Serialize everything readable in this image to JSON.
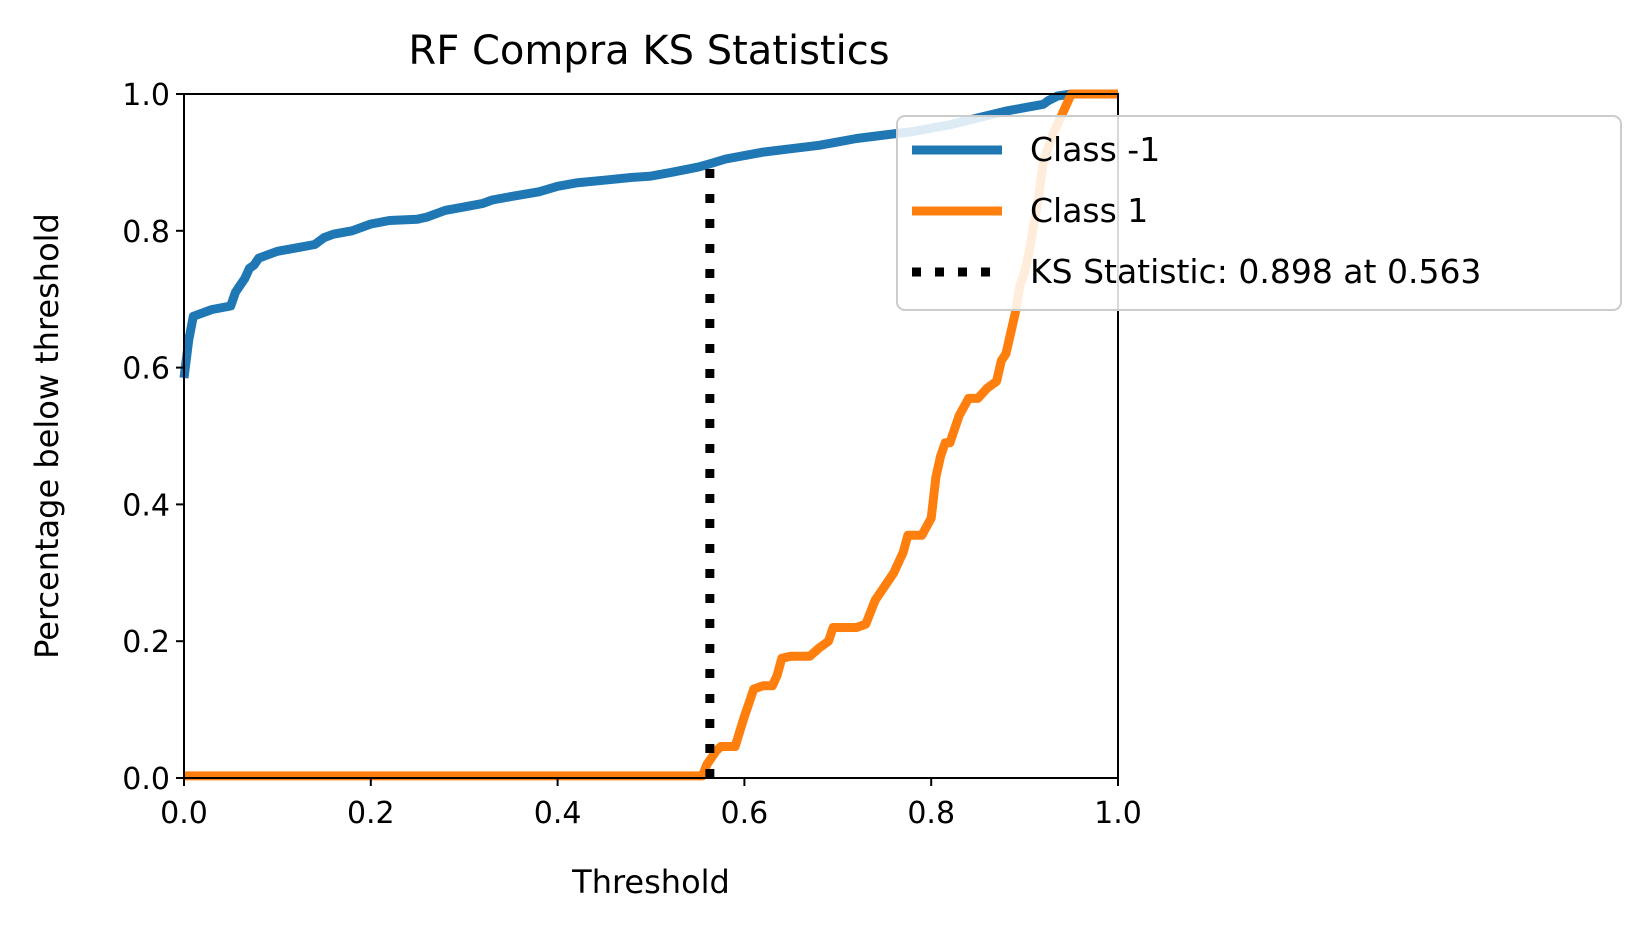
{
  "chart_data": {
    "type": "line",
    "title": "RF Compra KS Statistics",
    "xlabel": "Threshold",
    "ylabel": "Percentage below threshold",
    "xlim": [
      0.0,
      1.0
    ],
    "ylim": [
      0.0,
      1.0
    ],
    "xticks": [
      "0.0",
      "0.2",
      "0.4",
      "0.6",
      "0.8",
      "1.0"
    ],
    "yticks": [
      "0.0",
      "0.2",
      "0.4",
      "0.6",
      "0.8",
      "1.0"
    ],
    "grid": false,
    "legend_position": "upper-right",
    "series": [
      {
        "name": "Class -1",
        "color": "#1f77b4",
        "style": "solid",
        "x": [
          0.0,
          0.005,
          0.01,
          0.03,
          0.05,
          0.055,
          0.06,
          0.065,
          0.07,
          0.075,
          0.08,
          0.09,
          0.1,
          0.12,
          0.14,
          0.15,
          0.16,
          0.18,
          0.2,
          0.22,
          0.25,
          0.26,
          0.27,
          0.28,
          0.3,
          0.32,
          0.33,
          0.35,
          0.38,
          0.4,
          0.42,
          0.45,
          0.48,
          0.5,
          0.52,
          0.55,
          0.563,
          0.58,
          0.6,
          0.62,
          0.65,
          0.68,
          0.7,
          0.72,
          0.75,
          0.78,
          0.8,
          0.82,
          0.85,
          0.88,
          0.9,
          0.92,
          0.925,
          0.935,
          0.95,
          1.0
        ],
        "y": [
          0.585,
          0.64,
          0.675,
          0.685,
          0.69,
          0.71,
          0.72,
          0.73,
          0.745,
          0.75,
          0.76,
          0.765,
          0.77,
          0.775,
          0.78,
          0.79,
          0.795,
          0.8,
          0.81,
          0.815,
          0.817,
          0.82,
          0.825,
          0.83,
          0.835,
          0.84,
          0.845,
          0.85,
          0.857,
          0.865,
          0.87,
          0.874,
          0.878,
          0.88,
          0.885,
          0.893,
          0.898,
          0.905,
          0.91,
          0.915,
          0.92,
          0.925,
          0.93,
          0.935,
          0.94,
          0.945,
          0.95,
          0.955,
          0.965,
          0.975,
          0.98,
          0.985,
          0.99,
          0.997,
          1.0,
          1.0
        ]
      },
      {
        "name": "Class 1",
        "color": "#ff7f0e",
        "style": "solid",
        "x": [
          0.0,
          0.555,
          0.56,
          0.565,
          0.57,
          0.575,
          0.59,
          0.6,
          0.605,
          0.61,
          0.62,
          0.63,
          0.635,
          0.64,
          0.65,
          0.66,
          0.67,
          0.68,
          0.69,
          0.695,
          0.7,
          0.72,
          0.73,
          0.74,
          0.75,
          0.76,
          0.77,
          0.775,
          0.78,
          0.79,
          0.8,
          0.805,
          0.81,
          0.815,
          0.82,
          0.825,
          0.83,
          0.84,
          0.85,
          0.86,
          0.87,
          0.875,
          0.88,
          0.885,
          0.89,
          0.895,
          0.9,
          0.905,
          0.91,
          0.915,
          0.92,
          0.93,
          0.94,
          0.95,
          1.0
        ],
        "y": [
          0.003,
          0.003,
          0.02,
          0.03,
          0.04,
          0.046,
          0.046,
          0.09,
          0.11,
          0.13,
          0.135,
          0.135,
          0.15,
          0.175,
          0.178,
          0.178,
          0.178,
          0.19,
          0.2,
          0.22,
          0.22,
          0.22,
          0.225,
          0.26,
          0.28,
          0.3,
          0.33,
          0.355,
          0.355,
          0.355,
          0.38,
          0.44,
          0.47,
          0.49,
          0.49,
          0.51,
          0.53,
          0.555,
          0.555,
          0.57,
          0.58,
          0.61,
          0.62,
          0.65,
          0.68,
          0.72,
          0.74,
          0.77,
          0.81,
          0.85,
          0.9,
          0.94,
          0.97,
          1.0,
          1.0
        ]
      }
    ],
    "ks_line": {
      "name": "KS Statistic: 0.898 at 0.563",
      "color": "#000000",
      "style": "dotted",
      "x": 0.563,
      "y0": 0.0,
      "y1": 0.898
    }
  }
}
